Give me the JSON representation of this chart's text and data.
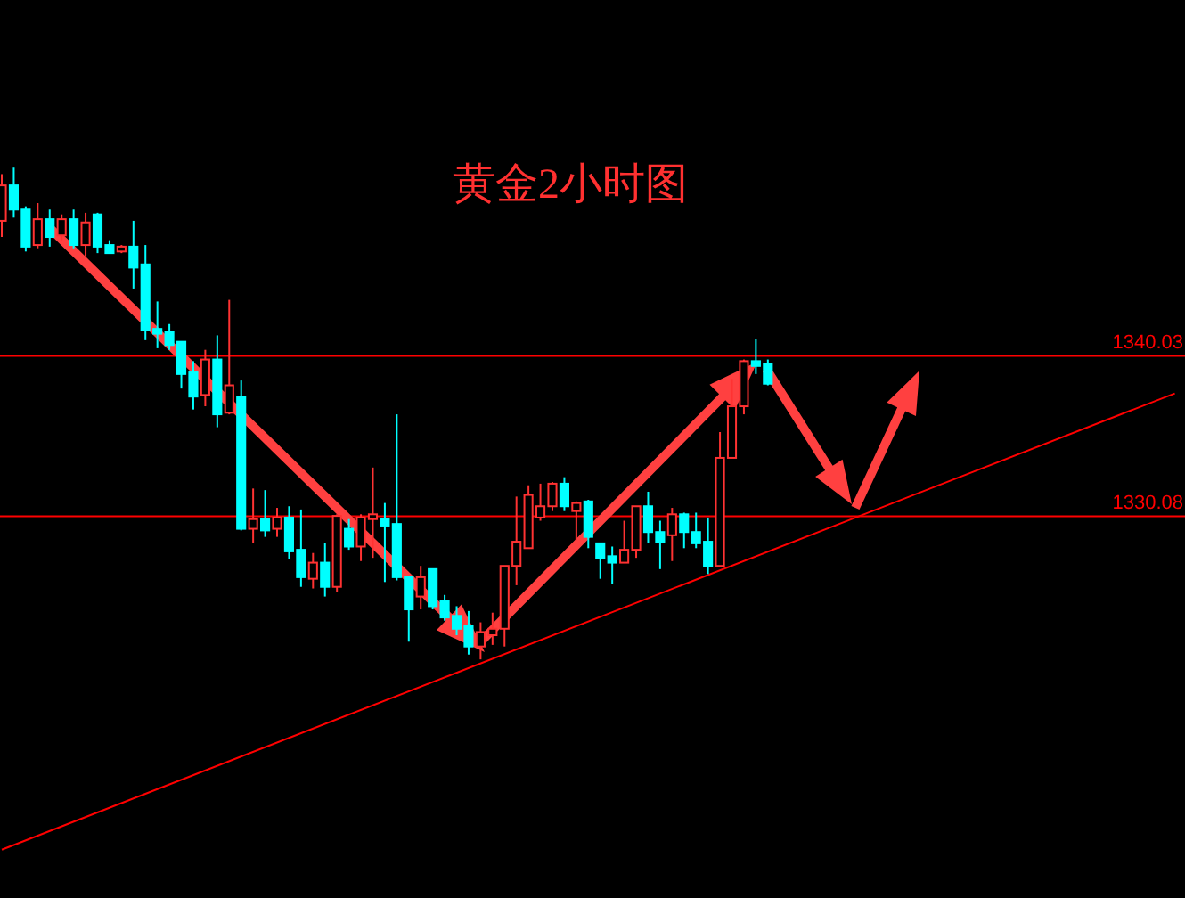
{
  "chart_data": {
    "type": "candlestick",
    "title": "黄金2小时图",
    "ylim": [
      1306.4,
      1362.1
    ],
    "categories": [
      null,
      null,
      null,
      null,
      null,
      null,
      null,
      null,
      null,
      null,
      null,
      null,
      null,
      null,
      null,
      null,
      null,
      null,
      null,
      null,
      null,
      null,
      null,
      null,
      null,
      null,
      null,
      null,
      null,
      null,
      null,
      null,
      null,
      null,
      null,
      null,
      null,
      null,
      null,
      null,
      null,
      null,
      null,
      null,
      null,
      null,
      null,
      null,
      null,
      null,
      null,
      null,
      null,
      null,
      null,
      null,
      null,
      null,
      null,
      null,
      null,
      null,
      null,
      null,
      null,
      null,
      null,
      null,
      null,
      null,
      null,
      null,
      null,
      null,
      null,
      null,
      null,
      null,
      null,
      null,
      null,
      null,
      null,
      null,
      null,
      null,
      null,
      null,
      null,
      null,
      null,
      null,
      null,
      null,
      null,
      null,
      null,
      null,
      null
    ],
    "ohlc": [
      [
        1348.4,
        1351.3,
        1347.4,
        1350.6
      ],
      [
        1350.6,
        1351.7,
        1348.6,
        1349.1
      ],
      [
        1349.1,
        1349.3,
        1346.5,
        1346.8
      ],
      [
        1346.9,
        1349.5,
        1346.7,
        1348.5
      ],
      [
        1348.5,
        1349.1,
        1346.8,
        1347.4
      ],
      [
        1347.5,
        1348.8,
        1347.2,
        1348.5
      ],
      [
        1348.5,
        1349.1,
        1346.7,
        1346.9
      ],
      [
        1346.9,
        1348.9,
        1346.2,
        1348.3
      ],
      [
        1348.8,
        1348.9,
        1346.4,
        1346.8
      ],
      [
        1346.9,
        1347.2,
        1346.4,
        1346.4
      ],
      [
        1346.5,
        1346.9,
        1346.4,
        1346.8
      ],
      [
        1346.8,
        1348.4,
        1344.2,
        1345.5
      ],
      [
        1345.7,
        1346.9,
        1341.0,
        1341.6
      ],
      [
        1341.7,
        1343.4,
        1340.5,
        1341.4
      ],
      [
        1341.5,
        1342.0,
        1340.4,
        1340.7
      ],
      [
        1340.9,
        1340.9,
        1338.0,
        1338.9
      ],
      [
        1339.0,
        1339.7,
        1336.7,
        1337.5
      ],
      [
        1337.6,
        1340.4,
        1336.9,
        1339.8
      ],
      [
        1339.8,
        1341.3,
        1335.6,
        1336.4
      ],
      [
        1336.5,
        1343.5,
        1336.4,
        1338.2
      ],
      [
        1337.5,
        1338.5,
        1329.2,
        1329.3
      ],
      [
        1329.3,
        1331.8,
        1328.4,
        1329.9
      ],
      [
        1329.9,
        1331.7,
        1328.8,
        1329.2
      ],
      [
        1329.3,
        1330.6,
        1328.8,
        1330.0
      ],
      [
        1330.0,
        1330.7,
        1327.4,
        1327.9
      ],
      [
        1328.0,
        1330.5,
        1325.7,
        1326.3
      ],
      [
        1326.2,
        1327.8,
        1325.6,
        1327.2
      ],
      [
        1327.2,
        1328.4,
        1325.1,
        1325.7
      ],
      [
        1325.7,
        1330.2,
        1325.4,
        1330.1
      ],
      [
        1329.3,
        1329.9,
        1328.0,
        1328.2
      ],
      [
        1328.2,
        1330.2,
        1327.3,
        1330.0
      ],
      [
        1329.9,
        1333.1,
        1327.5,
        1330.2
      ],
      [
        1329.9,
        1330.9,
        1326.0,
        1329.5
      ],
      [
        1329.6,
        1336.4,
        1326.1,
        1326.3
      ],
      [
        1326.3,
        1326.4,
        1322.3,
        1324.3
      ],
      [
        1325.1,
        1327.0,
        1324.3,
        1326.3
      ],
      [
        1326.8,
        1326.8,
        1324.3,
        1324.5
      ],
      [
        1324.8,
        1325.2,
        1323.6,
        1323.8
      ],
      [
        1323.9,
        1324.5,
        1322.7,
        1323.1
      ],
      [
        1323.3,
        1324.2,
        1321.5,
        1322.0
      ],
      [
        1322.0,
        1323.5,
        1321.2,
        1322.9
      ],
      [
        1322.7,
        1324.1,
        1322.1,
        1323.1
      ],
      [
        1323.1,
        1327.0,
        1322.0,
        1327.0
      ],
      [
        1327.0,
        1331.3,
        1325.8,
        1328.5
      ],
      [
        1328.1,
        1332.0,
        1328.1,
        1331.4
      ],
      [
        1330.0,
        1332.1,
        1329.8,
        1330.7
      ],
      [
        1330.7,
        1332.2,
        1330.4,
        1332.1
      ],
      [
        1332.1,
        1332.5,
        1330.4,
        1330.7
      ],
      [
        1330.4,
        1331.0,
        1328.6,
        1330.9
      ],
      [
        1331.0,
        1331.1,
        1328.1,
        1328.8
      ],
      [
        1328.4,
        1328.4,
        1326.2,
        1327.5
      ],
      [
        1327.6,
        1328.2,
        1325.9,
        1327.2
      ],
      [
        1327.2,
        1329.8,
        1327.2,
        1328.0
      ],
      [
        1328.0,
        1330.7,
        1327.5,
        1330.7
      ],
      [
        1330.7,
        1331.6,
        1328.4,
        1329.1
      ],
      [
        1329.1,
        1329.8,
        1326.8,
        1328.5
      ],
      [
        1328.9,
        1330.6,
        1327.3,
        1330.2
      ],
      [
        1330.2,
        1330.3,
        1328.1,
        1329.1
      ],
      [
        1329.1,
        1330.3,
        1328.1,
        1328.4
      ],
      [
        1328.5,
        1330.0,
        1326.5,
        1327.0
      ],
      [
        1327.0,
        1335.3,
        1327.0,
        1333.7
      ],
      [
        1333.7,
        1338.6,
        1333.7,
        1336.9
      ],
      [
        1336.9,
        1339.8,
        1336.4,
        1339.7
      ],
      [
        1339.7,
        1341.1,
        1338.9,
        1339.4
      ],
      [
        1339.5,
        1339.8,
        1338.2,
        1338.3
      ],
      null,
      null,
      null,
      null,
      null,
      null,
      null,
      null,
      null,
      null,
      null,
      null,
      null,
      null,
      null,
      null,
      null,
      null,
      null,
      null,
      null,
      null,
      null,
      null,
      null,
      null,
      null,
      null,
      null,
      null,
      null,
      null,
      null,
      null
    ],
    "colors": [
      "#ff3232",
      "#00ffff",
      "#00ffff",
      "#ff3232",
      "#00ffff",
      "#ff3232",
      "#00ffff",
      "#ff3232",
      "#00ffff",
      "#00ffff",
      "#ff3232",
      "#00ffff",
      "#00ffff",
      "#00ffff",
      "#00ffff",
      "#00ffff",
      "#00ffff",
      "#ff3232",
      "#00ffff",
      "#ff3232",
      "#00ffff",
      "#ff3232",
      "#00ffff",
      "#ff3232",
      "#00ffff",
      "#00ffff",
      "#ff3232",
      "#00ffff",
      "#ff3232",
      "#00ffff",
      "#ff3232",
      "#ff3232",
      "#00ffff",
      "#00ffff",
      "#00ffff",
      "#ff3232",
      "#00ffff",
      "#00ffff",
      "#00ffff",
      "#00ffff",
      "#ff3232",
      "#ff3232",
      "#ff3232",
      "#ff3232",
      "#ff3232",
      "#ff3232",
      "#ff3232",
      "#00ffff",
      "#ff3232",
      "#00ffff",
      "#00ffff",
      "#00ffff",
      "#ff3232",
      "#ff3232",
      "#00ffff",
      "#00ffff",
      "#ff3232",
      "#00ffff",
      "#00ffff",
      "#00ffff",
      "#ff3232",
      "#ff3232",
      "#ff3232",
      "#00ffff",
      "#00ffff",
      null,
      null,
      null,
      null,
      null,
      null,
      null,
      null,
      null,
      null,
      null,
      null,
      null,
      null,
      null,
      null,
      null,
      null,
      null,
      null,
      null,
      null,
      null,
      null,
      null,
      null,
      null,
      null,
      null,
      null,
      null,
      null,
      null,
      null
    ],
    "series": [
      {
        "type": "line",
        "color": "#ff0000",
        "values": [
          1309.4,
          null,
          null,
          null,
          null,
          null,
          null,
          null,
          null,
          null,
          null,
          null,
          null,
          null,
          null,
          null,
          null,
          null,
          null,
          null,
          null,
          null,
          null,
          null,
          null,
          null,
          null,
          null,
          null,
          null,
          null,
          null,
          null,
          null,
          null,
          null,
          null,
          null,
          null,
          null,
          null,
          null,
          null,
          null,
          null,
          null,
          null,
          null,
          null,
          null,
          null,
          null,
          null,
          null,
          null,
          null,
          null,
          null,
          null,
          null,
          null,
          null,
          null,
          null,
          null,
          null,
          null,
          null,
          null,
          null,
          null,
          null,
          null,
          null,
          null,
          null,
          null,
          null,
          null,
          null,
          null,
          null,
          null,
          null,
          null,
          null,
          null,
          null,
          null,
          null,
          null,
          null,
          null,
          null,
          null,
          null,
          null,
          null,
          1337.7
        ]
      }
    ],
    "ref_lines": [
      {
        "axis": "y",
        "value": 1340.03,
        "label": "1340.03",
        "color": "#ff0000"
      },
      {
        "axis": "y",
        "value": 1330.08,
        "label": "1330.08",
        "color": "#ff0000"
      }
    ]
  }
}
